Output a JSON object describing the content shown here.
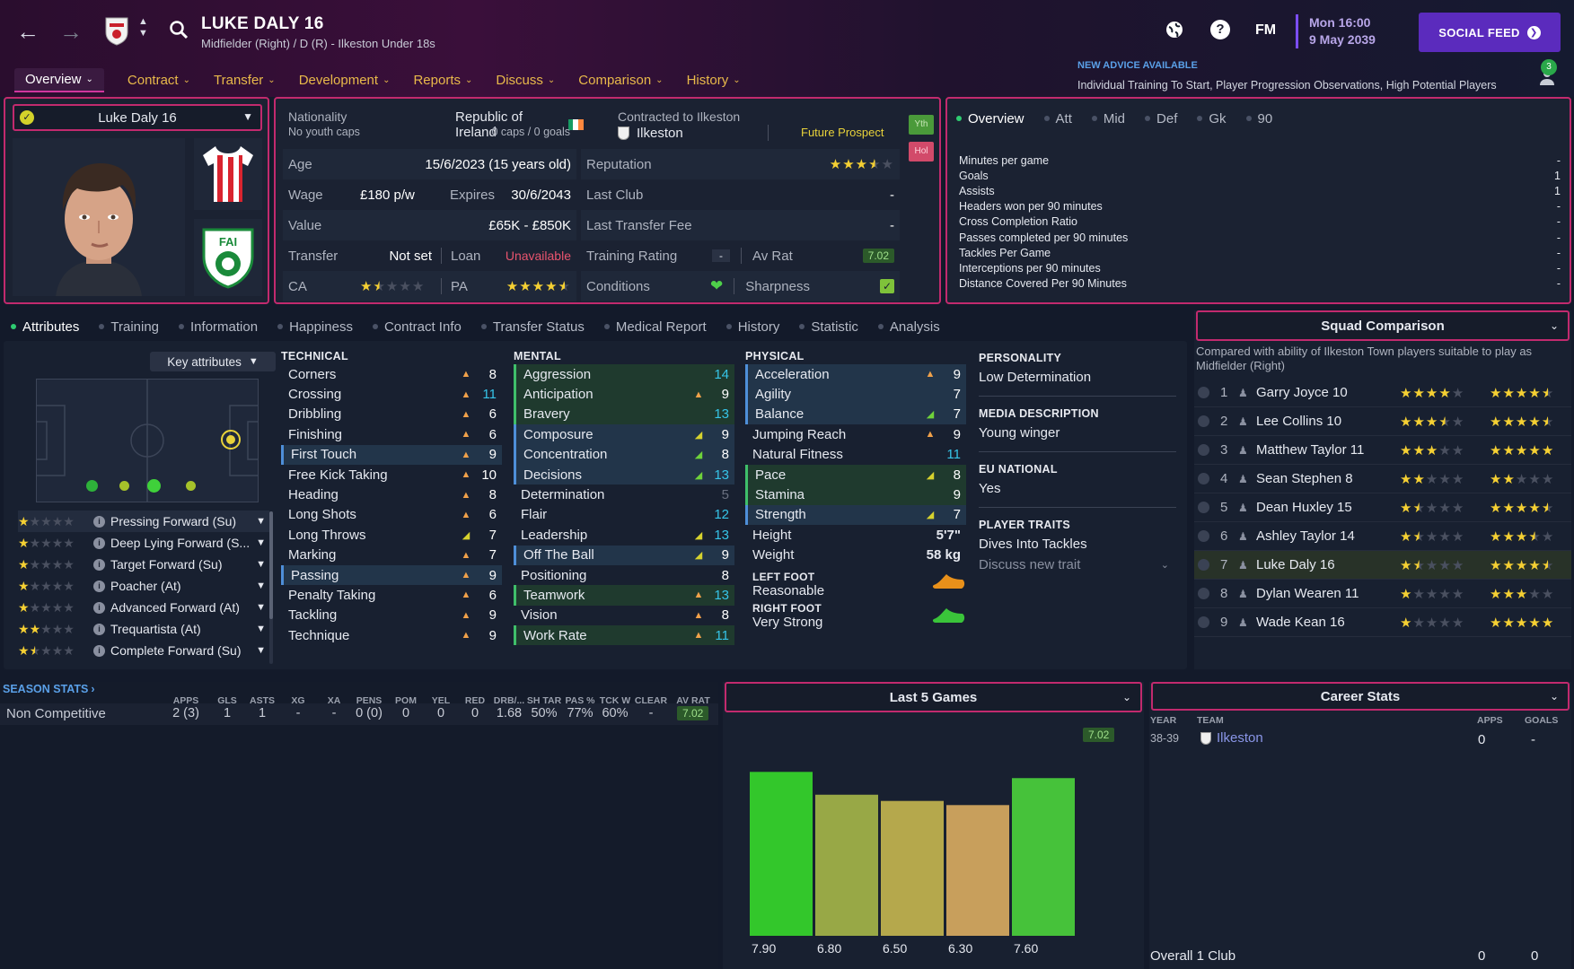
{
  "header": {
    "player_title": "LUKE DALY 16",
    "subtitle": "Midfielder (Right) / D (R) - Ilkeston Under 18s",
    "menu": [
      {
        "label": "Overview",
        "active": true
      },
      {
        "label": "Contract"
      },
      {
        "label": "Transfer"
      },
      {
        "label": "Development"
      },
      {
        "label": "Reports"
      },
      {
        "label": "Discuss"
      },
      {
        "label": "Comparison"
      },
      {
        "label": "History"
      }
    ],
    "fm_label": "FM",
    "time": "Mon 16:00",
    "date": "9 May 2039",
    "social_feed": "SOCIAL FEED",
    "advice_heading": "NEW ADVICE AVAILABLE",
    "advice_text": "Individual Training To Start, Player Progression Observations, High Potential Players",
    "notification_count": "3"
  },
  "profile": {
    "selector_name": "Luke Daly 16",
    "kit_colors": {
      "primary": "#d9242f",
      "secondary": "#ffffff"
    }
  },
  "info": {
    "nationality_label": "Nationality",
    "nationality": "Republic of Ireland",
    "youth_caps": "No youth caps",
    "caps": "0 caps / 0 goals",
    "contracted_label": "Contracted to Ilkeston",
    "club": "Ilkeston",
    "prospect": "Future Prospect",
    "badge_yth": "Yth",
    "badge_hol": "Hol",
    "age_label": "Age",
    "age": "15/6/2023 (15 years old)",
    "reputation_label": "Reputation",
    "reputation_stars": 3.5,
    "wage_label": "Wage",
    "wage": "£180 p/w",
    "expires_label": "Expires",
    "expires": "30/6/2043",
    "last_club_label": "Last Club",
    "last_club": "-",
    "value_label": "Value",
    "value": "£65K - £850K",
    "last_fee_label": "Last Transfer Fee",
    "last_fee": "-",
    "transfer_label": "Transfer",
    "transfer": "Not set",
    "loan_label": "Loan",
    "loan": "Unavailable",
    "training_rating_label": "Training Rating",
    "training_rating": "-",
    "av_rat_label": "Av Rat",
    "av_rat": "7.02",
    "ca_label": "CA",
    "ca_stars": 1.5,
    "pa_label": "PA",
    "pa_stars": 4.5,
    "conditions_label": "Conditions",
    "sharpness_label": "Sharpness"
  },
  "overview_stats": {
    "tabs": [
      "Overview",
      "Att",
      "Mid",
      "Def",
      "Gk",
      "90"
    ],
    "rows": [
      {
        "label": "Minutes per game",
        "value": "-"
      },
      {
        "label": "Goals",
        "value": "1"
      },
      {
        "label": "Assists",
        "value": "1"
      },
      {
        "label": "Headers won per 90 minutes",
        "value": "-"
      },
      {
        "label": "Cross Completion Ratio",
        "value": "-"
      },
      {
        "label": "Passes completed per 90 minutes",
        "value": "-"
      },
      {
        "label": "Tackles Per Game",
        "value": "-"
      },
      {
        "label": "Interceptions per 90 minutes",
        "value": "-"
      },
      {
        "label": "Distance Covered Per 90 Minutes",
        "value": "-"
      }
    ]
  },
  "subtabs": [
    "Attributes",
    "Training",
    "Information",
    "Happiness",
    "Contract Info",
    "Transfer Status",
    "Medical Report",
    "History",
    "Statistic",
    "Analysis"
  ],
  "key_attributes": "Key attributes",
  "roles": [
    {
      "name": "Pressing Forward (Su)",
      "stars": 1
    },
    {
      "name": "Deep Lying Forward (S...",
      "stars": 1
    },
    {
      "name": "Target Forward (Su)",
      "stars": 1
    },
    {
      "name": "Poacher (At)",
      "stars": 1
    },
    {
      "name": "Advanced Forward (At)",
      "stars": 1
    },
    {
      "name": "Trequartista (At)",
      "stars": 2
    },
    {
      "name": "Complete Forward (Su)",
      "stars": 1.5
    }
  ],
  "technical": {
    "heading": "TECHNICAL",
    "rows": [
      {
        "name": "Corners",
        "value": "8",
        "arrow": "up"
      },
      {
        "name": "Crossing",
        "value": "11",
        "arrow": "up",
        "color": "cyan"
      },
      {
        "name": "Dribbling",
        "value": "6",
        "arrow": "up"
      },
      {
        "name": "Finishing",
        "value": "6",
        "arrow": "up"
      },
      {
        "name": "First Touch",
        "value": "9",
        "arrow": "up",
        "hl": "blue"
      },
      {
        "name": "Free Kick Taking",
        "value": "10",
        "arrow": "up"
      },
      {
        "name": "Heading",
        "value": "8",
        "arrow": "up"
      },
      {
        "name": "Long Shots",
        "value": "6",
        "arrow": "up"
      },
      {
        "name": "Long Throws",
        "value": "7",
        "arrow": "yl"
      },
      {
        "name": "Marking",
        "value": "7",
        "arrow": "up"
      },
      {
        "name": "Passing",
        "value": "9",
        "arrow": "up",
        "hl": "blue"
      },
      {
        "name": "Penalty Taking",
        "value": "6",
        "arrow": "up"
      },
      {
        "name": "Tackling",
        "value": "9",
        "arrow": "up"
      },
      {
        "name": "Technique",
        "value": "9",
        "arrow": "up"
      }
    ]
  },
  "mental": {
    "heading": "MENTAL",
    "rows": [
      {
        "name": "Aggression",
        "value": "14",
        "arrow": "",
        "hl": "green",
        "color": "cyan"
      },
      {
        "name": "Anticipation",
        "value": "9",
        "arrow": "up",
        "hl": "green"
      },
      {
        "name": "Bravery",
        "value": "13",
        "arrow": "",
        "hl": "green",
        "color": "cyan"
      },
      {
        "name": "Composure",
        "value": "9",
        "arrow": "yl",
        "hl": "blue"
      },
      {
        "name": "Concentration",
        "value": "8",
        "arrow": "gr",
        "hl": "blue"
      },
      {
        "name": "Decisions",
        "value": "13",
        "arrow": "gr",
        "hl": "blue",
        "color": "cyan"
      },
      {
        "name": "Determination",
        "value": "5",
        "arrow": "",
        "color": "dim"
      },
      {
        "name": "Flair",
        "value": "12",
        "arrow": "",
        "color": "cyan"
      },
      {
        "name": "Leadership",
        "value": "13",
        "arrow": "yl",
        "color": "cyan"
      },
      {
        "name": "Off The Ball",
        "value": "9",
        "arrow": "yl",
        "hl": "blue"
      },
      {
        "name": "Positioning",
        "value": "8",
        "arrow": ""
      },
      {
        "name": "Teamwork",
        "value": "13",
        "arrow": "up",
        "hl": "green",
        "color": "cyan"
      },
      {
        "name": "Vision",
        "value": "8",
        "arrow": "up"
      },
      {
        "name": "Work Rate",
        "value": "11",
        "arrow": "up",
        "hl": "green",
        "color": "cyan"
      }
    ]
  },
  "physical": {
    "heading": "PHYSICAL",
    "rows": [
      {
        "name": "Acceleration",
        "value": "9",
        "arrow": "up",
        "hl": "blue"
      },
      {
        "name": "Agility",
        "value": "7",
        "arrow": "",
        "hl": "blue"
      },
      {
        "name": "Balance",
        "value": "7",
        "arrow": "gr",
        "hl": "blue"
      },
      {
        "name": "Jumping Reach",
        "value": "9",
        "arrow": "up"
      },
      {
        "name": "Natural Fitness",
        "value": "11",
        "arrow": "",
        "color": "cyan"
      },
      {
        "name": "Pace",
        "value": "8",
        "arrow": "yl",
        "hl": "green"
      },
      {
        "name": "Stamina",
        "value": "9",
        "arrow": "",
        "hl": "green"
      },
      {
        "name": "Strength",
        "value": "7",
        "arrow": "yl",
        "hl": "blue"
      }
    ],
    "height_label": "Height",
    "height": "5'7\"",
    "weight_label": "Weight",
    "weight": "58 kg",
    "left_foot_label": "LEFT FOOT",
    "left_foot": "Reasonable",
    "right_foot_label": "RIGHT FOOT",
    "right_foot": "Very Strong"
  },
  "personality": {
    "personality_h": "PERSONALITY",
    "personality": "Low Determination",
    "media_h": "MEDIA DESCRIPTION",
    "media": "Young winger",
    "eu_h": "EU NATIONAL",
    "eu": "Yes",
    "traits_h": "PLAYER TRAITS",
    "trait": "Dives Into Tackles",
    "discuss": "Discuss new trait"
  },
  "squad": {
    "title": "Squad Comparison",
    "desc": "Compared with ability of Ilkeston Town players suitable to play as Midfielder (Right)",
    "rows": [
      {
        "n": "1",
        "name": "Garry Joyce 10",
        "ca": 4,
        "pa": 4.5
      },
      {
        "n": "2",
        "name": "Lee Collins 10",
        "ca": 3.5,
        "pa": 4.5
      },
      {
        "n": "3",
        "name": "Matthew Taylor 11",
        "ca": 3,
        "pa": 5
      },
      {
        "n": "4",
        "name": "Sean Stephen 8",
        "ca": 2,
        "pa": 2
      },
      {
        "n": "5",
        "name": "Dean Huxley 15",
        "ca": 1.5,
        "pa": 4.5
      },
      {
        "n": "6",
        "name": "Ashley Taylor 14",
        "ca": 1.5,
        "pa": 3.5
      },
      {
        "n": "7",
        "name": "Luke Daly 16",
        "ca": 1.5,
        "pa": 4.5,
        "self": true
      },
      {
        "n": "8",
        "name": "Dylan Wearen 11",
        "ca": 1,
        "pa": 3
      },
      {
        "n": "9",
        "name": "Wade Kean 16",
        "ca": 1,
        "pa": 5
      }
    ]
  },
  "season": {
    "title": "SEASON STATS",
    "headers": [
      "APPS",
      "GLS",
      "ASTS",
      "XG",
      "XA",
      "PENS",
      "POM",
      "YEL",
      "RED",
      "DRB/...",
      "SH TAR",
      "PAS %",
      "TCK W",
      "CLEAR",
      "AV RAT"
    ],
    "row_label": "Non Competitive",
    "values": [
      "2 (3)",
      "1",
      "1",
      "-",
      "-",
      "0 (0)",
      "0",
      "0",
      "0",
      "1.68",
      "50%",
      "77%",
      "60%",
      "-",
      "7.02"
    ]
  },
  "last5": {
    "title": "Last 5 Games",
    "average": "7.02",
    "chart_data": {
      "type": "bar",
      "categories": [
        "7.90",
        "6.80",
        "6.50",
        "6.30",
        "7.60"
      ],
      "values": [
        7.9,
        6.8,
        6.5,
        6.3,
        7.6
      ],
      "colors": [
        "#33c72b",
        "#98a846",
        "#b5a84c",
        "#c89f5c",
        "#46c23a"
      ]
    }
  },
  "career": {
    "title": "Career Stats",
    "h_year": "YEAR",
    "h_team": "TEAM",
    "h_apps": "APPS",
    "h_goals": "GOALS",
    "year": "38-39",
    "team": "Ilkeston",
    "apps": "0",
    "goals": "-",
    "total_label": "Overall 1 Club",
    "total_apps": "0",
    "total_goals": "0"
  }
}
